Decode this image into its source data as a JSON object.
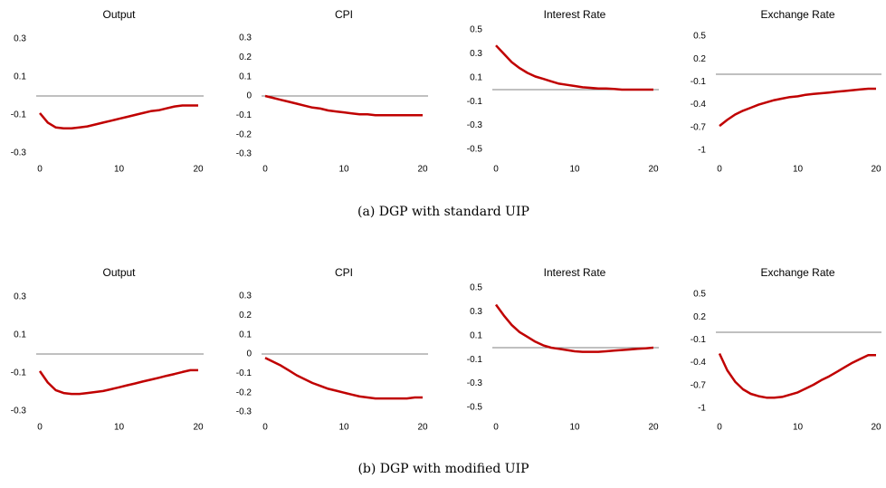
{
  "figure": {
    "captions": [
      "(a) DGP with standard UIP",
      "(b) DGP with modified UIP"
    ]
  },
  "chart_data": [
    {
      "type": "line",
      "title": "Output",
      "x": [
        0,
        1,
        2,
        3,
        4,
        5,
        6,
        7,
        8,
        9,
        10,
        11,
        12,
        13,
        14,
        15,
        16,
        17,
        18,
        19,
        20
      ],
      "xlim": [
        0,
        20
      ],
      "xticks": [
        0,
        10,
        20
      ],
      "ylim": [
        -0.3,
        0.3
      ],
      "yticks": [
        0.3,
        0.1,
        -0.1,
        -0.3
      ],
      "color": "#c00000",
      "values": [
        -0.09,
        -0.14,
        -0.165,
        -0.17,
        -0.17,
        -0.165,
        -0.16,
        -0.15,
        -0.14,
        -0.13,
        -0.12,
        -0.11,
        -0.1,
        -0.09,
        -0.08,
        -0.075,
        -0.065,
        -0.055,
        -0.05,
        -0.05,
        -0.05
      ]
    },
    {
      "type": "line",
      "title": "CPI",
      "x": [
        0,
        1,
        2,
        3,
        4,
        5,
        6,
        7,
        8,
        9,
        10,
        11,
        12,
        13,
        14,
        15,
        16,
        17,
        18,
        19,
        20
      ],
      "xlim": [
        0,
        20
      ],
      "xticks": [
        0,
        10,
        20
      ],
      "ylim": [
        -0.3,
        0.3
      ],
      "yticks": [
        0.3,
        0.2,
        0.1,
        0,
        -0.1,
        -0.2,
        -0.3
      ],
      "color": "#c00000",
      "values": [
        0,
        -0.01,
        -0.02,
        -0.03,
        -0.04,
        -0.05,
        -0.06,
        -0.065,
        -0.075,
        -0.08,
        -0.085,
        -0.09,
        -0.095,
        -0.095,
        -0.1,
        -0.1,
        -0.1,
        -0.1,
        -0.1,
        -0.1,
        -0.1
      ]
    },
    {
      "type": "line",
      "title": "Interest Rate",
      "x": [
        0,
        1,
        2,
        3,
        4,
        5,
        6,
        7,
        8,
        9,
        10,
        11,
        12,
        13,
        14,
        15,
        16,
        17,
        18,
        19,
        20
      ],
      "xlim": [
        0,
        20
      ],
      "xticks": [
        0,
        10,
        20
      ],
      "ylim": [
        -0.5,
        0.5
      ],
      "yticks": [
        0.5,
        0.3,
        0.1,
        -0.1,
        -0.3,
        -0.5
      ],
      "color": "#c00000",
      "values": [
        0.37,
        0.3,
        0.23,
        0.18,
        0.14,
        0.11,
        0.09,
        0.07,
        0.05,
        0.04,
        0.03,
        0.02,
        0.015,
        0.01,
        0.01,
        0.005,
        0,
        0,
        0,
        0,
        0
      ]
    },
    {
      "type": "line",
      "title": "Exchange Rate",
      "x": [
        0,
        1,
        2,
        3,
        4,
        5,
        6,
        7,
        8,
        9,
        10,
        11,
        12,
        13,
        14,
        15,
        16,
        17,
        18,
        19,
        20
      ],
      "xlim": [
        0,
        20
      ],
      "xticks": [
        0,
        10,
        20
      ],
      "ylim": [
        -1,
        0.5
      ],
      "yticks": [
        0.5,
        0.2,
        -0.1,
        -0.4,
        -0.7,
        -1
      ],
      "color": "#c00000",
      "values": [
        -0.68,
        -0.6,
        -0.53,
        -0.48,
        -0.44,
        -0.4,
        -0.37,
        -0.34,
        -0.32,
        -0.3,
        -0.29,
        -0.27,
        -0.26,
        -0.25,
        -0.24,
        -0.23,
        -0.22,
        -0.21,
        -0.2,
        -0.19,
        -0.19
      ]
    },
    {
      "type": "line",
      "title": "Output",
      "x": [
        0,
        1,
        2,
        3,
        4,
        5,
        6,
        7,
        8,
        9,
        10,
        11,
        12,
        13,
        14,
        15,
        16,
        17,
        18,
        19,
        20
      ],
      "xlim": [
        0,
        20
      ],
      "xticks": [
        0,
        10,
        20
      ],
      "ylim": [
        -0.3,
        0.3
      ],
      "yticks": [
        0.3,
        0.1,
        -0.1,
        -0.3
      ],
      "color": "#c00000",
      "values": [
        -0.09,
        -0.15,
        -0.19,
        -0.205,
        -0.21,
        -0.21,
        -0.205,
        -0.2,
        -0.195,
        -0.185,
        -0.175,
        -0.165,
        -0.155,
        -0.145,
        -0.135,
        -0.125,
        -0.115,
        -0.105,
        -0.095,
        -0.085,
        -0.085
      ]
    },
    {
      "type": "line",
      "title": "CPI",
      "x": [
        0,
        1,
        2,
        3,
        4,
        5,
        6,
        7,
        8,
        9,
        10,
        11,
        12,
        13,
        14,
        15,
        16,
        17,
        18,
        19,
        20
      ],
      "xlim": [
        0,
        20
      ],
      "xticks": [
        0,
        10,
        20
      ],
      "ylim": [
        -0.3,
        0.3
      ],
      "yticks": [
        0.3,
        0.2,
        0.1,
        0,
        -0.1,
        -0.2,
        -0.3
      ],
      "color": "#c00000",
      "values": [
        -0.02,
        -0.04,
        -0.06,
        -0.085,
        -0.11,
        -0.13,
        -0.15,
        -0.165,
        -0.18,
        -0.19,
        -0.2,
        -0.21,
        -0.22,
        -0.225,
        -0.23,
        -0.23,
        -0.23,
        -0.23,
        -0.23,
        -0.225,
        -0.225
      ]
    },
    {
      "type": "line",
      "title": "Interest Rate",
      "x": [
        0,
        1,
        2,
        3,
        4,
        5,
        6,
        7,
        8,
        9,
        10,
        11,
        12,
        13,
        14,
        15,
        16,
        17,
        18,
        19,
        20
      ],
      "xlim": [
        0,
        20
      ],
      "xticks": [
        0,
        10,
        20
      ],
      "ylim": [
        -0.5,
        0.5
      ],
      "yticks": [
        0.5,
        0.3,
        0.1,
        -0.1,
        -0.3,
        -0.5
      ],
      "color": "#c00000",
      "values": [
        0.36,
        0.27,
        0.19,
        0.13,
        0.09,
        0.05,
        0.02,
        0,
        -0.01,
        -0.02,
        -0.03,
        -0.035,
        -0.035,
        -0.035,
        -0.03,
        -0.025,
        -0.02,
        -0.015,
        -0.01,
        -0.005,
        0
      ]
    },
    {
      "type": "line",
      "title": "Exchange Rate",
      "x": [
        0,
        1,
        2,
        3,
        4,
        5,
        6,
        7,
        8,
        9,
        10,
        11,
        12,
        13,
        14,
        15,
        16,
        17,
        18,
        19,
        20
      ],
      "xlim": [
        0,
        20
      ],
      "xticks": [
        0,
        10,
        20
      ],
      "ylim": [
        -1,
        0.5
      ],
      "yticks": [
        0.5,
        0.2,
        -0.1,
        -0.4,
        -0.7,
        -1
      ],
      "color": "#c00000",
      "values": [
        -0.28,
        -0.5,
        -0.65,
        -0.75,
        -0.81,
        -0.84,
        -0.86,
        -0.86,
        -0.85,
        -0.82,
        -0.79,
        -0.74,
        -0.69,
        -0.63,
        -0.58,
        -0.52,
        -0.46,
        -0.4,
        -0.35,
        -0.3,
        -0.3
      ]
    }
  ]
}
